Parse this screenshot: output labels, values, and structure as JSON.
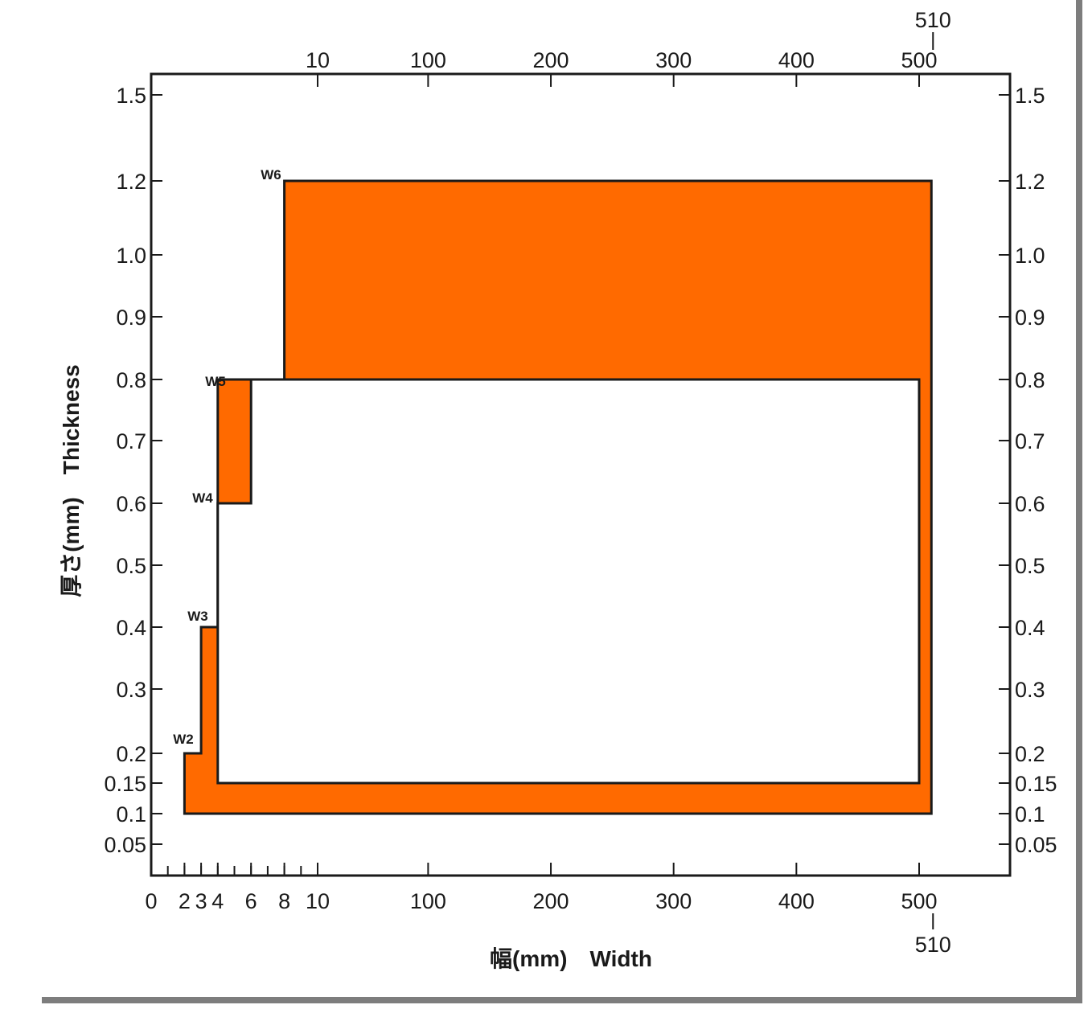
{
  "chart_data": {
    "type": "area",
    "title": "",
    "xlabel": "幅(mm)　Width",
    "ylabel": "厚さ(mm)　Thickness",
    "fill_color": "#ff6a00",
    "x_ticks_bottom": [
      "0",
      "2",
      "3",
      "4",
      "6",
      "8",
      "10",
      "100",
      "200",
      "300",
      "400",
      "500"
    ],
    "x_ticks_top": [
      "10",
      "100",
      "200",
      "300",
      "400",
      "500"
    ],
    "x_end_label": "510",
    "y_ticks": [
      "0.05",
      "0.1",
      "0.15",
      "0.2",
      "0.3",
      "0.4",
      "0.5",
      "0.6",
      "0.7",
      "0.8",
      "0.9",
      "1.0",
      "1.2",
      "1.5"
    ],
    "regions": [
      {
        "name": "W2",
        "min_width_mm": 2,
        "min_thickness_mm": 0.1,
        "max_thickness_mm": 0.2
      },
      {
        "name": "W3",
        "min_width_mm": 3,
        "min_thickness_mm": 0.1,
        "max_thickness_mm": 0.4
      },
      {
        "name": "W4",
        "min_width_mm": 4,
        "min_thickness_mm": 0.15,
        "max_thickness_mm": 0.6
      },
      {
        "name": "W5",
        "min_width_mm": 6,
        "min_thickness_mm": 0.15,
        "max_thickness_mm": 0.8
      },
      {
        "name": "W6",
        "min_width_mm": 8,
        "min_thickness_mm": 0.1,
        "max_thickness_mm": 1.2
      }
    ],
    "max_width_mm": 510,
    "white_region": {
      "x_from_mm": 4,
      "x_to_mm": 500,
      "y_from_mm": 0.15
    }
  }
}
